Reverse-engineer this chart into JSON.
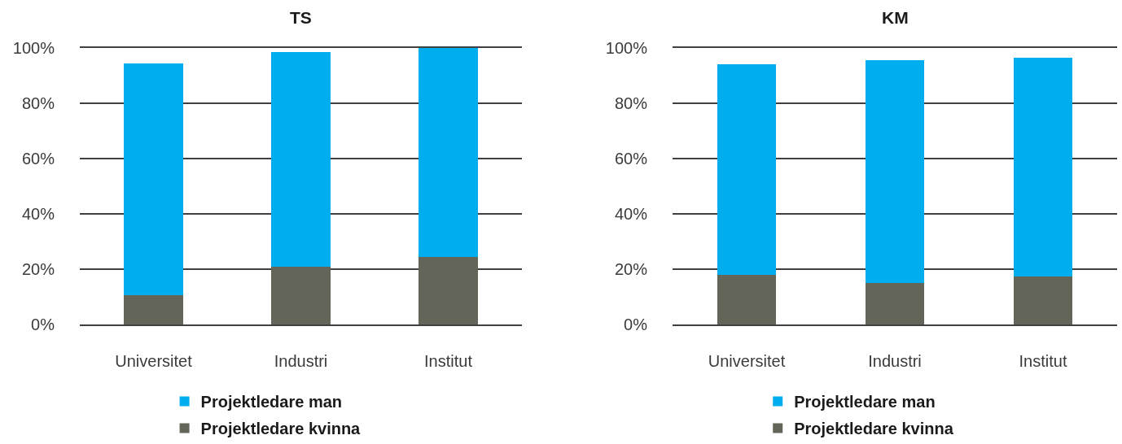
{
  "chart_data": [
    {
      "type": "bar",
      "title": "TS",
      "categories": [
        "Universitet",
        "Industri",
        "Institut"
      ],
      "stacked": true,
      "series": [
        {
          "name": "Projektledare kvinna",
          "color": "#626557",
          "values": [
            10.5,
            21,
            24.5
          ]
        },
        {
          "name": "Projektledare man",
          "color": "#00aeef",
          "values": [
            84,
            77.5,
            75.5
          ]
        }
      ],
      "ylim": [
        0,
        100
      ],
      "yticks": [
        {
          "value": 0,
          "label": "0%"
        },
        {
          "value": 20,
          "label": "20%"
        },
        {
          "value": 40,
          "label": "40%"
        },
        {
          "value": 60,
          "label": "60%"
        },
        {
          "value": 80,
          "label": "80%"
        },
        {
          "value": 100,
          "label": "100%"
        }
      ],
      "grid": "y",
      "legend": "bottom"
    },
    {
      "type": "bar",
      "title": "KM",
      "categories": [
        "Universitet",
        "Industri",
        "Institut"
      ],
      "stacked": true,
      "series": [
        {
          "name": "Projektledare kvinna",
          "color": "#626557",
          "values": [
            18,
            15,
            17.5
          ]
        },
        {
          "name": "Projektledare man",
          "color": "#00aeef",
          "values": [
            76,
            80.5,
            79
          ]
        }
      ],
      "ylim": [
        0,
        100
      ],
      "yticks": [
        {
          "value": 0,
          "label": "0%"
        },
        {
          "value": 20,
          "label": "20%"
        },
        {
          "value": 40,
          "label": "40%"
        },
        {
          "value": 60,
          "label": "60%"
        },
        {
          "value": 80,
          "label": "80%"
        },
        {
          "value": 100,
          "label": "100%"
        }
      ],
      "grid": "y",
      "legend": "bottom"
    }
  ]
}
